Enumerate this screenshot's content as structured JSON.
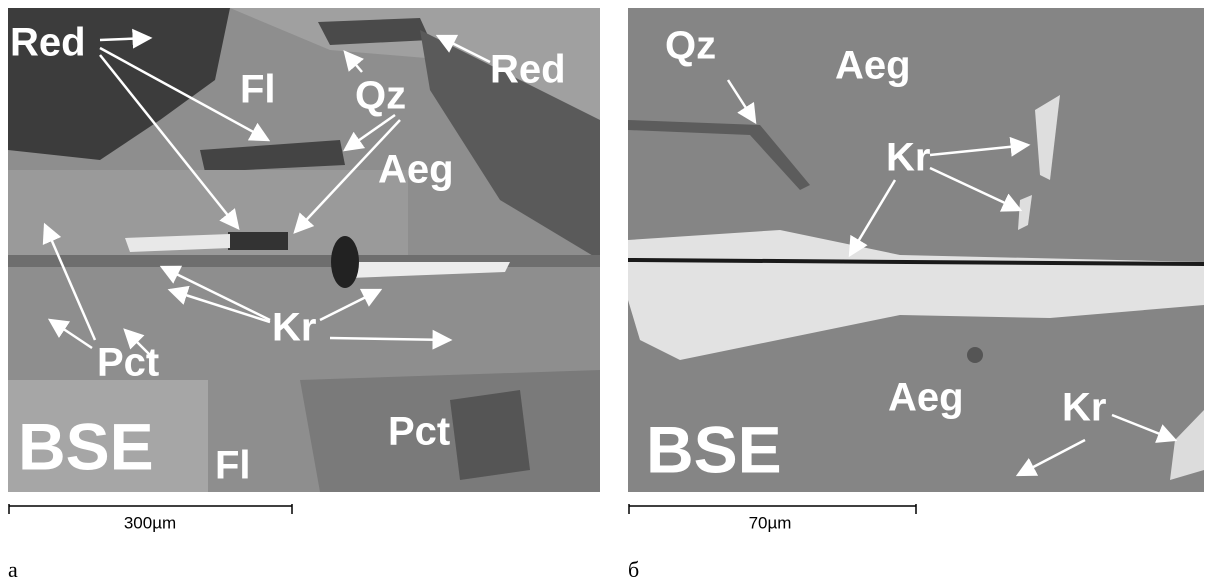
{
  "panels": [
    {
      "labels": [
        "Red",
        "Red",
        "Fl",
        "Qz",
        "Aeg",
        "Kr",
        "Pct",
        "Pct",
        "Fl",
        "BSE"
      ],
      "scale_bar": "300µm",
      "caption": "а"
    },
    {
      "labels": [
        "Qz",
        "Aeg",
        "Kr",
        "Aeg",
        "Kr",
        "BSE"
      ],
      "scale_bar": "70µm",
      "caption": "б"
    }
  ]
}
